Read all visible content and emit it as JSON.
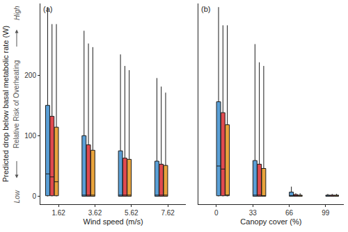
{
  "chart_data": [
    {
      "type": "box",
      "title": "(a)",
      "x_label": "Wind speed (m/s)",
      "y_label": "Predicted drop below basal metabolic rate (W)",
      "annotations": {
        "axis_note": "Relative Risk of Overheating",
        "low": "Low",
        "high": "High"
      },
      "categories": [
        "1.62",
        "3.62",
        "5.62",
        "7.62"
      ],
      "ylim": [
        -13,
        318
      ],
      "yticks": [
        0,
        100,
        200
      ],
      "grid": false,
      "series": [
        {
          "color": "#5a9fd6",
          "lower": [
            0,
            0,
            0,
            0
          ],
          "q1": [
            1,
            0,
            0,
            0
          ],
          "median": [
            37,
            2,
            2,
            2
          ],
          "q3": [
            150,
            100,
            75,
            58
          ],
          "upper": [
            312,
            273,
            234,
            195
          ]
        },
        {
          "color": "#e04a4f",
          "lower": [
            0,
            0,
            0,
            0
          ],
          "q1": [
            1,
            0,
            0,
            0
          ],
          "median": [
            32,
            2,
            2,
            2
          ],
          "q3": [
            132,
            85,
            63,
            53
          ],
          "upper": [
            284,
            252,
            215,
            181
          ]
        },
        {
          "color": "#e9a43c",
          "lower": [
            0,
            0,
            0,
            0
          ],
          "q1": [
            1,
            0,
            0,
            0
          ],
          "median": [
            24,
            2,
            2,
            2
          ],
          "q3": [
            114,
            76,
            61,
            51
          ],
          "upper": [
            284,
            246,
            208,
            171
          ]
        }
      ]
    },
    {
      "type": "box",
      "title": "(b)",
      "x_label": "Canopy cover (%)",
      "categories": [
        "0",
        "33",
        "66",
        "99"
      ],
      "ylim": [
        -13,
        318
      ],
      "yticks": [
        0,
        100,
        200
      ],
      "grid": false,
      "series": [
        {
          "color": "#5a9fd6",
          "lower": [
            0,
            0,
            0,
            0
          ],
          "q1": [
            1,
            0,
            0,
            0
          ],
          "median": [
            50,
            2,
            0,
            0
          ],
          "q3": [
            156,
            59,
            7,
            2
          ],
          "upper": [
            312,
            251,
            16,
            4
          ]
        },
        {
          "color": "#e04a4f",
          "lower": [
            0,
            0,
            0,
            0
          ],
          "q1": [
            1,
            0,
            0,
            0
          ],
          "median": [
            45,
            2,
            0,
            0
          ],
          "q3": [
            138,
            53,
            3,
            2
          ],
          "upper": [
            282,
            221,
            5,
            4
          ]
        },
        {
          "color": "#e9a43c",
          "lower": [
            0,
            0,
            0,
            0
          ],
          "q1": [
            1,
            0,
            0,
            0
          ],
          "median": [
            2,
            1,
            0,
            0
          ],
          "q3": [
            118,
            46,
            2,
            2
          ],
          "upper": [
            282,
            215,
            5,
            4
          ]
        }
      ]
    }
  ]
}
